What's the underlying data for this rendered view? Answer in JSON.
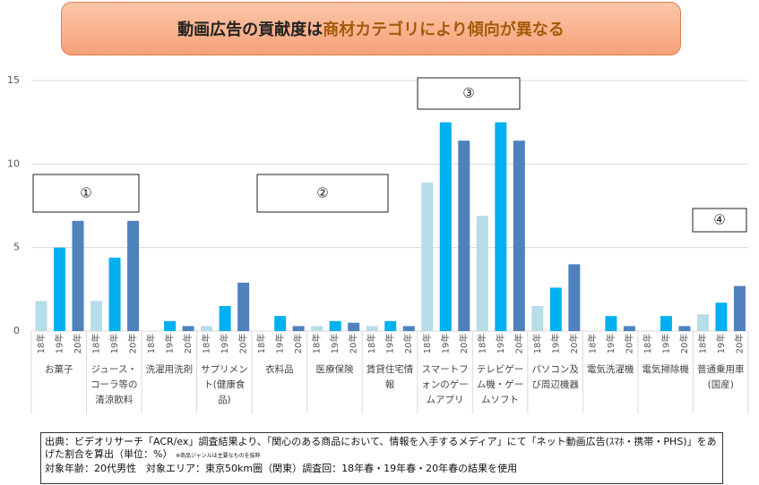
{
  "chart_data": {
    "type": "bar",
    "title": "動画広告の貢献度は",
    "title_emphasis": "商材カテゴリにより傾向が異なる",
    "categories": [
      "お菓子",
      "ジュース・コーラ等の清涼飲料",
      "洗濯用洗剤",
      "サプリメント(健康食品)",
      "衣料品",
      "医療保険",
      "賃貸住宅情報",
      "スマートフォンのゲームアプリ",
      "テレビゲーム機・ゲームソフト",
      "パソコン及び周辺機器",
      "電気洗濯機",
      "電気掃除機",
      "普通乗用車(国産)"
    ],
    "series": [
      {
        "name": "18年",
        "color": "#b7dde8",
        "values": [
          1.8,
          1.8,
          0,
          0.3,
          0,
          0.3,
          0.3,
          8.9,
          6.9,
          1.5,
          0,
          0,
          1.0
        ]
      },
      {
        "name": "19年",
        "color": "#00b0f0",
        "values": [
          5.0,
          4.4,
          0.6,
          1.5,
          0.9,
          0.6,
          0.6,
          12.5,
          12.5,
          2.6,
          0.9,
          0.9,
          1.7
        ]
      },
      {
        "name": "20年",
        "color": "#4f81bd",
        "values": [
          6.6,
          6.6,
          0.3,
          2.9,
          0.3,
          0.5,
          0.3,
          11.4,
          11.4,
          4.0,
          0.3,
          0.3,
          2.7
        ]
      }
    ],
    "ylim": [
      0,
      15
    ],
    "yticks": [
      0,
      5,
      10,
      15
    ],
    "grid": true,
    "annotations": [
      "①",
      "②",
      "③",
      "④"
    ],
    "source": "出典：ビデオリサーチ「ACR/ex」調査結果より、「関心のある商品において、情報を入手するメディア」にて「ネット動画広告(ｽﾏﾎ・携帯・PHS)」をあげた割合を算出（単位：%）",
    "note": "※商品ジャンルは主要なものを抜粋",
    "target": "対象年齢：20代男性　対象エリア：東京50km圏（関東）調査回：18年春・19年春・20年春の結果を使用"
  }
}
